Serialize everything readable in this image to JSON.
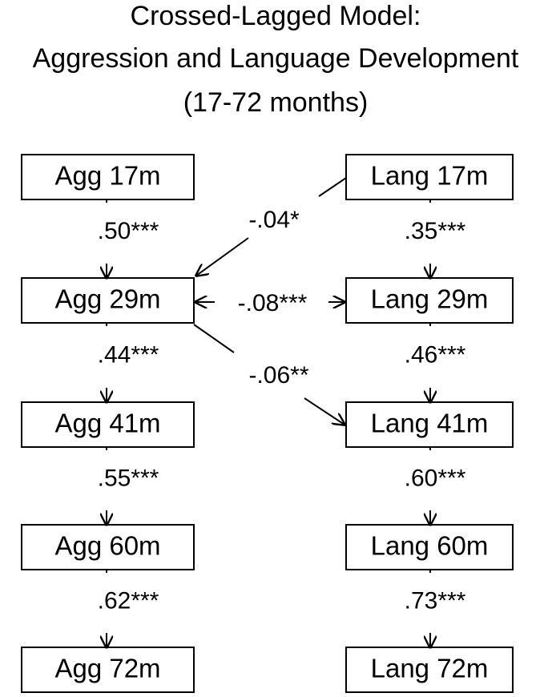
{
  "title": [
    "Crossed-Lagged Model:",
    "Aggression and Language Development",
    "(17-72 months)"
  ],
  "nodes": [
    {
      "label": "Agg 17m"
    },
    {
      "label": "Agg 29m"
    },
    {
      "label": "Agg 41m"
    },
    {
      "label": "Agg 60m"
    },
    {
      "label": "Agg 72m"
    },
    {
      "label": "Lang 17m"
    },
    {
      "label": "Lang 29m"
    },
    {
      "label": "Lang 41m"
    },
    {
      "label": "Lang 60m"
    },
    {
      "label": "Lang 72m"
    }
  ],
  "edges": [
    {
      "label": ".50***"
    },
    {
      "label": ".44***"
    },
    {
      "label": ".55***"
    },
    {
      "label": ".62***"
    },
    {
      "label": ".35***"
    },
    {
      "label": ".46***"
    },
    {
      "label": ".60***"
    },
    {
      "label": ".73***"
    },
    {
      "label": "-.04*"
    },
    {
      "label": "-.08***"
    },
    {
      "label": "-.06**"
    }
  ]
}
